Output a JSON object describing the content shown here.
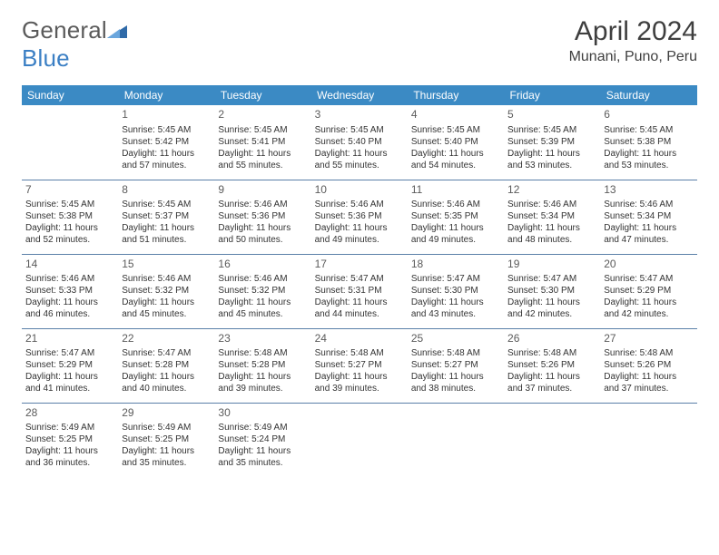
{
  "logo": {
    "text_gray": "General",
    "text_blue": "Blue"
  },
  "header": {
    "title": "April 2024",
    "location": "Munani, Puno, Peru"
  },
  "colors": {
    "header_bg": "#3b8ac4",
    "header_fg": "#ffffff",
    "cell_border": "#5a7fa8",
    "text": "#333333",
    "logo_gray": "#5b5b5b",
    "logo_blue": "#3b7fc4"
  },
  "daynames": [
    "Sunday",
    "Monday",
    "Tuesday",
    "Wednesday",
    "Thursday",
    "Friday",
    "Saturday"
  ],
  "weeks": [
    [
      null,
      {
        "n": "1",
        "sr": "Sunrise: 5:45 AM",
        "ss": "Sunset: 5:42 PM",
        "dl": "Daylight: 11 hours and 57 minutes."
      },
      {
        "n": "2",
        "sr": "Sunrise: 5:45 AM",
        "ss": "Sunset: 5:41 PM",
        "dl": "Daylight: 11 hours and 55 minutes."
      },
      {
        "n": "3",
        "sr": "Sunrise: 5:45 AM",
        "ss": "Sunset: 5:40 PM",
        "dl": "Daylight: 11 hours and 55 minutes."
      },
      {
        "n": "4",
        "sr": "Sunrise: 5:45 AM",
        "ss": "Sunset: 5:40 PM",
        "dl": "Daylight: 11 hours and 54 minutes."
      },
      {
        "n": "5",
        "sr": "Sunrise: 5:45 AM",
        "ss": "Sunset: 5:39 PM",
        "dl": "Daylight: 11 hours and 53 minutes."
      },
      {
        "n": "6",
        "sr": "Sunrise: 5:45 AM",
        "ss": "Sunset: 5:38 PM",
        "dl": "Daylight: 11 hours and 53 minutes."
      }
    ],
    [
      {
        "n": "7",
        "sr": "Sunrise: 5:45 AM",
        "ss": "Sunset: 5:38 PM",
        "dl": "Daylight: 11 hours and 52 minutes."
      },
      {
        "n": "8",
        "sr": "Sunrise: 5:45 AM",
        "ss": "Sunset: 5:37 PM",
        "dl": "Daylight: 11 hours and 51 minutes."
      },
      {
        "n": "9",
        "sr": "Sunrise: 5:46 AM",
        "ss": "Sunset: 5:36 PM",
        "dl": "Daylight: 11 hours and 50 minutes."
      },
      {
        "n": "10",
        "sr": "Sunrise: 5:46 AM",
        "ss": "Sunset: 5:36 PM",
        "dl": "Daylight: 11 hours and 49 minutes."
      },
      {
        "n": "11",
        "sr": "Sunrise: 5:46 AM",
        "ss": "Sunset: 5:35 PM",
        "dl": "Daylight: 11 hours and 49 minutes."
      },
      {
        "n": "12",
        "sr": "Sunrise: 5:46 AM",
        "ss": "Sunset: 5:34 PM",
        "dl": "Daylight: 11 hours and 48 minutes."
      },
      {
        "n": "13",
        "sr": "Sunrise: 5:46 AM",
        "ss": "Sunset: 5:34 PM",
        "dl": "Daylight: 11 hours and 47 minutes."
      }
    ],
    [
      {
        "n": "14",
        "sr": "Sunrise: 5:46 AM",
        "ss": "Sunset: 5:33 PM",
        "dl": "Daylight: 11 hours and 46 minutes."
      },
      {
        "n": "15",
        "sr": "Sunrise: 5:46 AM",
        "ss": "Sunset: 5:32 PM",
        "dl": "Daylight: 11 hours and 45 minutes."
      },
      {
        "n": "16",
        "sr": "Sunrise: 5:46 AM",
        "ss": "Sunset: 5:32 PM",
        "dl": "Daylight: 11 hours and 45 minutes."
      },
      {
        "n": "17",
        "sr": "Sunrise: 5:47 AM",
        "ss": "Sunset: 5:31 PM",
        "dl": "Daylight: 11 hours and 44 minutes."
      },
      {
        "n": "18",
        "sr": "Sunrise: 5:47 AM",
        "ss": "Sunset: 5:30 PM",
        "dl": "Daylight: 11 hours and 43 minutes."
      },
      {
        "n": "19",
        "sr": "Sunrise: 5:47 AM",
        "ss": "Sunset: 5:30 PM",
        "dl": "Daylight: 11 hours and 42 minutes."
      },
      {
        "n": "20",
        "sr": "Sunrise: 5:47 AM",
        "ss": "Sunset: 5:29 PM",
        "dl": "Daylight: 11 hours and 42 minutes."
      }
    ],
    [
      {
        "n": "21",
        "sr": "Sunrise: 5:47 AM",
        "ss": "Sunset: 5:29 PM",
        "dl": "Daylight: 11 hours and 41 minutes."
      },
      {
        "n": "22",
        "sr": "Sunrise: 5:47 AM",
        "ss": "Sunset: 5:28 PM",
        "dl": "Daylight: 11 hours and 40 minutes."
      },
      {
        "n": "23",
        "sr": "Sunrise: 5:48 AM",
        "ss": "Sunset: 5:28 PM",
        "dl": "Daylight: 11 hours and 39 minutes."
      },
      {
        "n": "24",
        "sr": "Sunrise: 5:48 AM",
        "ss": "Sunset: 5:27 PM",
        "dl": "Daylight: 11 hours and 39 minutes."
      },
      {
        "n": "25",
        "sr": "Sunrise: 5:48 AM",
        "ss": "Sunset: 5:27 PM",
        "dl": "Daylight: 11 hours and 38 minutes."
      },
      {
        "n": "26",
        "sr": "Sunrise: 5:48 AM",
        "ss": "Sunset: 5:26 PM",
        "dl": "Daylight: 11 hours and 37 minutes."
      },
      {
        "n": "27",
        "sr": "Sunrise: 5:48 AM",
        "ss": "Sunset: 5:26 PM",
        "dl": "Daylight: 11 hours and 37 minutes."
      }
    ],
    [
      {
        "n": "28",
        "sr": "Sunrise: 5:49 AM",
        "ss": "Sunset: 5:25 PM",
        "dl": "Daylight: 11 hours and 36 minutes."
      },
      {
        "n": "29",
        "sr": "Sunrise: 5:49 AM",
        "ss": "Sunset: 5:25 PM",
        "dl": "Daylight: 11 hours and 35 minutes."
      },
      {
        "n": "30",
        "sr": "Sunrise: 5:49 AM",
        "ss": "Sunset: 5:24 PM",
        "dl": "Daylight: 11 hours and 35 minutes."
      },
      null,
      null,
      null,
      null
    ]
  ]
}
